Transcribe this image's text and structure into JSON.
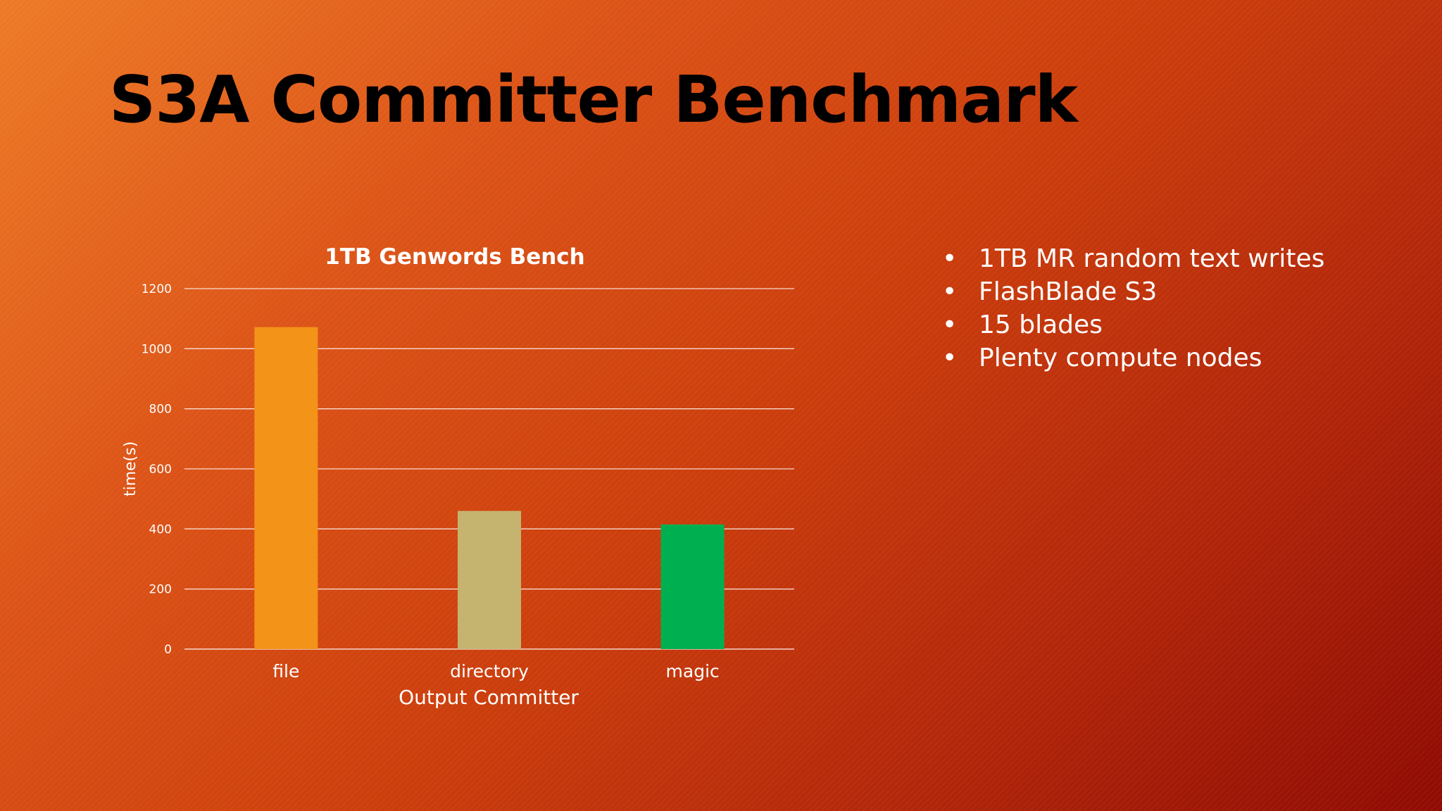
{
  "slide": {
    "title": "S3A Committer Benchmark"
  },
  "bullets": [
    "1TB MR random text writes",
    "FlashBlade S3",
    "15 blades",
    "Plenty compute nodes"
  ],
  "chart_data": {
    "type": "bar",
    "title": "1TB Genwords Bench",
    "categories": [
      "file",
      "directory",
      "magic"
    ],
    "values": [
      1072,
      460,
      415
    ],
    "colors": [
      "#f39318",
      "#c4b470",
      "#00b050"
    ],
    "xlabel": "Output Committer",
    "ylabel": "time(s)",
    "ylim": [
      0,
      1200
    ],
    "yticks": [
      0,
      200,
      400,
      600,
      800,
      1000,
      1200
    ],
    "grid": true,
    "legend": "none"
  }
}
